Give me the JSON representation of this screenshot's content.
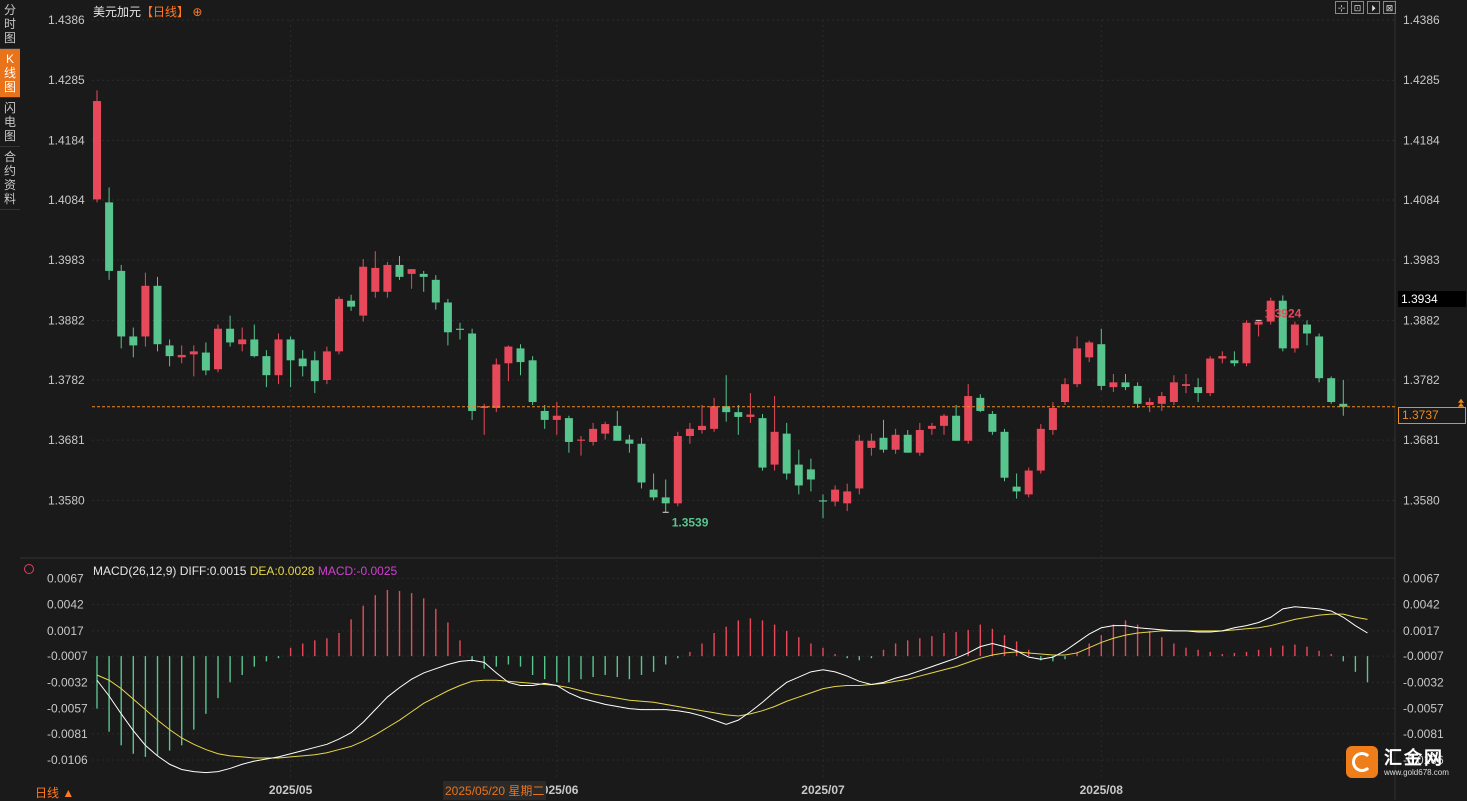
{
  "sidebar": {
    "tabs": [
      {
        "label": "分时图",
        "active": false
      },
      {
        "label": "K线图",
        "active": true
      },
      {
        "label": "闪电图",
        "active": false
      },
      {
        "label": "合约资料",
        "active": false
      }
    ]
  },
  "header": {
    "instrument": "美元加元",
    "period": "【日线】",
    "period_icon": "⊕"
  },
  "toolbar": {
    "buttons": [
      "⊹",
      "⊡",
      "⏵",
      "⊠"
    ]
  },
  "price_tags": {
    "last_close": "1.3934",
    "current": "1.3737",
    "high_label": "1.3924",
    "low_label": "1.3539"
  },
  "macd_header": {
    "params": "MACD(26,12,9)",
    "diff": "DIFF:0.0015",
    "dea": "DEA:0.0028",
    "macd": "MACD:-0.0025"
  },
  "bottom": {
    "period_label": "日线 ▲",
    "hover_date": "2025/05/20 星期二"
  },
  "logo": {
    "name": "汇金网",
    "url_text": "www.gold678.com"
  },
  "colors": {
    "up": "#e8495a",
    "down": "#58c48e",
    "diff_line": "#ffffff",
    "dea_line": "#e6d64a",
    "bg": "#1a1a1a"
  },
  "chart_data": {
    "type": "candlestick",
    "title": "美元加元【日线】",
    "price_axis": {
      "ticks": [
        "1.4386",
        "1.4285",
        "1.4184",
        "1.4084",
        "1.3983",
        "1.3882",
        "1.3782",
        "1.3681",
        "1.3580"
      ],
      "range": [
        1.349,
        1.4386
      ]
    },
    "macd_axis": {
      "ticks": [
        "0.0067",
        "0.0042",
        "0.0017",
        "-0.0007",
        "-0.0032",
        "-0.0057",
        "-0.0081",
        "-0.0106"
      ],
      "range": [
        -0.0125,
        0.0075
      ]
    },
    "x_labels": [
      "2025/05",
      "2025/06",
      "2025/07",
      "2025/08"
    ],
    "x_label_index": [
      16,
      38,
      60,
      83
    ],
    "current_price_line": 1.3737,
    "candles": [
      {
        "o": 1.4085,
        "h": 1.4268,
        "l": 1.408,
        "c": 1.425
      },
      {
        "o": 1.408,
        "h": 1.4105,
        "l": 1.395,
        "c": 1.3965
      },
      {
        "o": 1.3965,
        "h": 1.3975,
        "l": 1.3835,
        "c": 1.3855
      },
      {
        "o": 1.3855,
        "h": 1.387,
        "l": 1.382,
        "c": 1.384
      },
      {
        "o": 1.3855,
        "h": 1.3962,
        "l": 1.3838,
        "c": 1.394
      },
      {
        "o": 1.394,
        "h": 1.3955,
        "l": 1.383,
        "c": 1.3842
      },
      {
        "o": 1.384,
        "h": 1.385,
        "l": 1.3805,
        "c": 1.3822
      },
      {
        "o": 1.382,
        "h": 1.384,
        "l": 1.381,
        "c": 1.3824
      },
      {
        "o": 1.3825,
        "h": 1.384,
        "l": 1.3788,
        "c": 1.383
      },
      {
        "o": 1.3828,
        "h": 1.3845,
        "l": 1.379,
        "c": 1.3798
      },
      {
        "o": 1.38,
        "h": 1.3875,
        "l": 1.3795,
        "c": 1.3868
      },
      {
        "o": 1.3868,
        "h": 1.389,
        "l": 1.3838,
        "c": 1.3845
      },
      {
        "o": 1.3842,
        "h": 1.387,
        "l": 1.383,
        "c": 1.385
      },
      {
        "o": 1.385,
        "h": 1.3875,
        "l": 1.382,
        "c": 1.3822
      },
      {
        "o": 1.3822,
        "h": 1.3832,
        "l": 1.377,
        "c": 1.379
      },
      {
        "o": 1.379,
        "h": 1.386,
        "l": 1.3775,
        "c": 1.385
      },
      {
        "o": 1.385,
        "h": 1.3855,
        "l": 1.377,
        "c": 1.3815
      },
      {
        "o": 1.3818,
        "h": 1.3832,
        "l": 1.3788,
        "c": 1.3805
      },
      {
        "o": 1.3815,
        "h": 1.383,
        "l": 1.376,
        "c": 1.378
      },
      {
        "o": 1.3782,
        "h": 1.3838,
        "l": 1.3775,
        "c": 1.383
      },
      {
        "o": 1.383,
        "h": 1.3922,
        "l": 1.3825,
        "c": 1.3918
      },
      {
        "o": 1.3915,
        "h": 1.3925,
        "l": 1.3898,
        "c": 1.3905
      },
      {
        "o": 1.389,
        "h": 1.3985,
        "l": 1.388,
        "c": 1.3972
      },
      {
        "o": 1.393,
        "h": 1.3998,
        "l": 1.392,
        "c": 1.397
      },
      {
        "o": 1.393,
        "h": 1.398,
        "l": 1.392,
        "c": 1.3975
      },
      {
        "o": 1.3975,
        "h": 1.399,
        "l": 1.395,
        "c": 1.3955
      },
      {
        "o": 1.396,
        "h": 1.3968,
        "l": 1.3935,
        "c": 1.3968
      },
      {
        "o": 1.396,
        "h": 1.3965,
        "l": 1.393,
        "c": 1.3955
      },
      {
        "o": 1.395,
        "h": 1.3958,
        "l": 1.39,
        "c": 1.3912
      },
      {
        "o": 1.3912,
        "h": 1.3918,
        "l": 1.384,
        "c": 1.3862
      },
      {
        "o": 1.3868,
        "h": 1.3878,
        "l": 1.385,
        "c": 1.3866
      },
      {
        "o": 1.386,
        "h": 1.3868,
        "l": 1.3715,
        "c": 1.373
      },
      {
        "o": 1.3735,
        "h": 1.3742,
        "l": 1.369,
        "c": 1.3738
      },
      {
        "o": 1.3735,
        "h": 1.3818,
        "l": 1.3728,
        "c": 1.3808
      },
      {
        "o": 1.381,
        "h": 1.384,
        "l": 1.378,
        "c": 1.3838
      },
      {
        "o": 1.3835,
        "h": 1.3842,
        "l": 1.379,
        "c": 1.3812
      },
      {
        "o": 1.3815,
        "h": 1.3822,
        "l": 1.374,
        "c": 1.3745
      },
      {
        "o": 1.373,
        "h": 1.374,
        "l": 1.37,
        "c": 1.3715
      },
      {
        "o": 1.3715,
        "h": 1.3745,
        "l": 1.369,
        "c": 1.3722
      },
      {
        "o": 1.3718,
        "h": 1.3722,
        "l": 1.366,
        "c": 1.3678
      },
      {
        "o": 1.368,
        "h": 1.3688,
        "l": 1.3655,
        "c": 1.3682
      },
      {
        "o": 1.3678,
        "h": 1.371,
        "l": 1.3672,
        "c": 1.37
      },
      {
        "o": 1.3692,
        "h": 1.3712,
        "l": 1.3682,
        "c": 1.3708
      },
      {
        "o": 1.3705,
        "h": 1.373,
        "l": 1.368,
        "c": 1.368
      },
      {
        "o": 1.3682,
        "h": 1.369,
        "l": 1.366,
        "c": 1.3675
      },
      {
        "o": 1.3675,
        "h": 1.3685,
        "l": 1.36,
        "c": 1.361
      },
      {
        "o": 1.3598,
        "h": 1.3625,
        "l": 1.358,
        "c": 1.3585
      },
      {
        "o": 1.3585,
        "h": 1.3615,
        "l": 1.356,
        "c": 1.3575
      },
      {
        "o": 1.3575,
        "h": 1.3695,
        "l": 1.357,
        "c": 1.3688
      },
      {
        "o": 1.3688,
        "h": 1.371,
        "l": 1.3675,
        "c": 1.37
      },
      {
        "o": 1.3698,
        "h": 1.374,
        "l": 1.3692,
        "c": 1.3705
      },
      {
        "o": 1.37,
        "h": 1.3752,
        "l": 1.3695,
        "c": 1.3738
      },
      {
        "o": 1.3738,
        "h": 1.379,
        "l": 1.3712,
        "c": 1.3728
      },
      {
        "o": 1.3728,
        "h": 1.374,
        "l": 1.369,
        "c": 1.372
      },
      {
        "o": 1.372,
        "h": 1.376,
        "l": 1.371,
        "c": 1.3724
      },
      {
        "o": 1.3718,
        "h": 1.3725,
        "l": 1.363,
        "c": 1.3635
      },
      {
        "o": 1.364,
        "h": 1.3755,
        "l": 1.363,
        "c": 1.3695
      },
      {
        "o": 1.3692,
        "h": 1.371,
        "l": 1.3615,
        "c": 1.3625
      },
      {
        "o": 1.364,
        "h": 1.3665,
        "l": 1.359,
        "c": 1.3605
      },
      {
        "o": 1.3632,
        "h": 1.365,
        "l": 1.3595,
        "c": 1.3615
      },
      {
        "o": 1.358,
        "h": 1.359,
        "l": 1.355,
        "c": 1.3578
      },
      {
        "o": 1.3578,
        "h": 1.3605,
        "l": 1.357,
        "c": 1.3598
      },
      {
        "o": 1.3575,
        "h": 1.3608,
        "l": 1.3562,
        "c": 1.3595
      },
      {
        "o": 1.36,
        "h": 1.369,
        "l": 1.359,
        "c": 1.368
      },
      {
        "o": 1.3668,
        "h": 1.3692,
        "l": 1.3655,
        "c": 1.368
      },
      {
        "o": 1.3685,
        "h": 1.3715,
        "l": 1.366,
        "c": 1.3665
      },
      {
        "o": 1.3665,
        "h": 1.37,
        "l": 1.3658,
        "c": 1.369
      },
      {
        "o": 1.369,
        "h": 1.3698,
        "l": 1.366,
        "c": 1.366
      },
      {
        "o": 1.366,
        "h": 1.371,
        "l": 1.3655,
        "c": 1.3698
      },
      {
        "o": 1.37,
        "h": 1.371,
        "l": 1.369,
        "c": 1.3705
      },
      {
        "o": 1.3705,
        "h": 1.3725,
        "l": 1.369,
        "c": 1.3722
      },
      {
        "o": 1.3722,
        "h": 1.374,
        "l": 1.368,
        "c": 1.368
      },
      {
        "o": 1.368,
        "h": 1.3775,
        "l": 1.3675,
        "c": 1.3755
      },
      {
        "o": 1.3752,
        "h": 1.3758,
        "l": 1.3728,
        "c": 1.373
      },
      {
        "o": 1.3725,
        "h": 1.373,
        "l": 1.369,
        "c": 1.3695
      },
      {
        "o": 1.3695,
        "h": 1.37,
        "l": 1.3612,
        "c": 1.3618
      },
      {
        "o": 1.3603,
        "h": 1.3625,
        "l": 1.3583,
        "c": 1.3595
      },
      {
        "o": 1.359,
        "h": 1.3635,
        "l": 1.3585,
        "c": 1.363
      },
      {
        "o": 1.363,
        "h": 1.3708,
        "l": 1.3625,
        "c": 1.37
      },
      {
        "o": 1.3698,
        "h": 1.3745,
        "l": 1.369,
        "c": 1.3735
      },
      {
        "o": 1.3745,
        "h": 1.3785,
        "l": 1.374,
        "c": 1.3775
      },
      {
        "o": 1.3775,
        "h": 1.3855,
        "l": 1.377,
        "c": 1.3835
      },
      {
        "o": 1.382,
        "h": 1.3848,
        "l": 1.3812,
        "c": 1.3845
      },
      {
        "o": 1.3842,
        "h": 1.3868,
        "l": 1.3765,
        "c": 1.3772
      },
      {
        "o": 1.377,
        "h": 1.3792,
        "l": 1.3762,
        "c": 1.3778
      },
      {
        "o": 1.3778,
        "h": 1.3792,
        "l": 1.3765,
        "c": 1.377
      },
      {
        "o": 1.3772,
        "h": 1.3778,
        "l": 1.3735,
        "c": 1.3742
      },
      {
        "o": 1.374,
        "h": 1.3752,
        "l": 1.3728,
        "c": 1.3745
      },
      {
        "o": 1.3742,
        "h": 1.3762,
        "l": 1.373,
        "c": 1.3755
      },
      {
        "o": 1.3745,
        "h": 1.379,
        "l": 1.374,
        "c": 1.3778
      },
      {
        "o": 1.3772,
        "h": 1.3792,
        "l": 1.376,
        "c": 1.3775
      },
      {
        "o": 1.377,
        "h": 1.3785,
        "l": 1.3745,
        "c": 1.376
      },
      {
        "o": 1.376,
        "h": 1.3822,
        "l": 1.3755,
        "c": 1.3818
      },
      {
        "o": 1.3818,
        "h": 1.383,
        "l": 1.381,
        "c": 1.3822
      },
      {
        "o": 1.3815,
        "h": 1.383,
        "l": 1.3805,
        "c": 1.381
      },
      {
        "o": 1.381,
        "h": 1.3882,
        "l": 1.3805,
        "c": 1.3878
      },
      {
        "o": 1.3875,
        "h": 1.3882,
        "l": 1.3855,
        "c": 1.388
      },
      {
        "o": 1.388,
        "h": 1.392,
        "l": 1.3875,
        "c": 1.3915
      },
      {
        "o": 1.3915,
        "h": 1.3924,
        "l": 1.383,
        "c": 1.3835
      },
      {
        "o": 1.3835,
        "h": 1.388,
        "l": 1.3828,
        "c": 1.3875
      },
      {
        "o": 1.3875,
        "h": 1.3882,
        "l": 1.384,
        "c": 1.386
      },
      {
        "o": 1.3855,
        "h": 1.386,
        "l": 1.3778,
        "c": 1.3785
      },
      {
        "o": 1.3785,
        "h": 1.3788,
        "l": 1.3742,
        "c": 1.3745
      },
      {
        "o": 1.3742,
        "h": 1.3782,
        "l": 1.3722,
        "c": 1.3737
      }
    ],
    "macd_hist": [
      -0.005,
      -0.0072,
      -0.0085,
      -0.0093,
      -0.0096,
      -0.0095,
      -0.009,
      -0.0085,
      -0.007,
      -0.0055,
      -0.004,
      -0.0025,
      -0.0018,
      -0.001,
      -0.0005,
      -0.0002,
      0.0008,
      0.0012,
      0.0015,
      0.0017,
      0.0022,
      0.0035,
      0.0048,
      0.0058,
      0.0063,
      0.0062,
      0.006,
      0.0055,
      0.0045,
      0.0032,
      0.0015,
      -0.0005,
      -0.0012,
      -0.001,
      -0.0008,
      -0.001,
      -0.0018,
      -0.0022,
      -0.0025,
      -0.0025,
      -0.0022,
      -0.002,
      -0.0018,
      -0.002,
      -0.0022,
      -0.0018,
      -0.0015,
      -0.0008,
      -0.0002,
      0.0004,
      0.0012,
      0.0022,
      0.0028,
      0.0034,
      0.0036,
      0.0034,
      0.003,
      0.0024,
      0.0018,
      0.0012,
      0.0008,
      0.0002,
      -0.0002,
      -0.0004,
      -0.0002,
      0.0006,
      0.0012,
      0.0015,
      0.0017,
      0.0019,
      0.0022,
      0.0023,
      0.0025,
      0.003,
      0.0026,
      0.002,
      0.0014,
      0.0006,
      -0.0004,
      -0.0005,
      -0.0003,
      0.0004,
      0.0012,
      0.002,
      0.003,
      0.0034,
      0.003,
      0.0024,
      0.0018,
      0.0012,
      0.0008,
      0.0006,
      0.0004,
      0.0002,
      0.0003,
      0.0004,
      0.0006,
      0.0008,
      0.001,
      0.0011,
      0.0009,
      0.0005,
      0.0002,
      -0.0005,
      -0.0015,
      -0.0025
    ],
    "diff": [
      -0.003,
      -0.0045,
      -0.0062,
      -0.0078,
      -0.0092,
      -0.0102,
      -0.011,
      -0.0115,
      -0.0117,
      -0.0118,
      -0.0117,
      -0.0114,
      -0.011,
      -0.0107,
      -0.0105,
      -0.0103,
      -0.01,
      -0.0097,
      -0.0094,
      -0.0091,
      -0.0086,
      -0.008,
      -0.007,
      -0.0058,
      -0.0046,
      -0.0037,
      -0.0029,
      -0.0023,
      -0.0019,
      -0.0015,
      -0.0012,
      -0.0011,
      -0.0013,
      -0.0023,
      -0.0032,
      -0.0035,
      -0.0035,
      -0.0033,
      -0.0035,
      -0.0042,
      -0.0047,
      -0.005,
      -0.0053,
      -0.0055,
      -0.0057,
      -0.0058,
      -0.0058,
      -0.0058,
      -0.0059,
      -0.0061,
      -0.0064,
      -0.0068,
      -0.0072,
      -0.0068,
      -0.006,
      -0.0051,
      -0.0041,
      -0.0032,
      -0.0027,
      -0.0022,
      -0.002,
      -0.0022,
      -0.0026,
      -0.0031,
      -0.0034,
      -0.0032,
      -0.0028,
      -0.0025,
      -0.0021,
      -0.0017,
      -0.0013,
      -0.0009,
      -0.0004,
      0.0002,
      0.0005,
      0.0002,
      -0.0002,
      -0.0008,
      -0.001,
      -0.0008,
      -0.0002,
      0.0006,
      0.0014,
      0.002,
      0.0022,
      0.0022,
      0.002,
      0.0019,
      0.0018,
      0.0017,
      0.0017,
      0.0016,
      0.0016,
      0.0017,
      0.002,
      0.0022,
      0.0025,
      0.003,
      0.0038,
      0.004,
      0.0039,
      0.0038,
      0.0036,
      0.003,
      0.0022,
      0.0015
    ],
    "dea": [
      -0.0025,
      -0.003,
      -0.0038,
      -0.0048,
      -0.0058,
      -0.0068,
      -0.0077,
      -0.0085,
      -0.0091,
      -0.0096,
      -0.01,
      -0.0102,
      -0.0103,
      -0.0104,
      -0.0104,
      -0.0104,
      -0.0103,
      -0.0102,
      -0.0101,
      -0.0099,
      -0.0096,
      -0.0093,
      -0.0088,
      -0.0082,
      -0.0075,
      -0.0068,
      -0.006,
      -0.0052,
      -0.0046,
      -0.004,
      -0.0035,
      -0.0031,
      -0.003,
      -0.003,
      -0.0031,
      -0.0032,
      -0.0033,
      -0.0034,
      -0.0035,
      -0.0037,
      -0.004,
      -0.0043,
      -0.0045,
      -0.0047,
      -0.0049,
      -0.005,
      -0.0051,
      -0.0053,
      -0.0055,
      -0.0057,
      -0.0059,
      -0.0061,
      -0.0063,
      -0.0064,
      -0.0062,
      -0.0059,
      -0.0055,
      -0.005,
      -0.0046,
      -0.0042,
      -0.0038,
      -0.0036,
      -0.0035,
      -0.0035,
      -0.0034,
      -0.0033,
      -0.0031,
      -0.0029,
      -0.0026,
      -0.0023,
      -0.002,
      -0.0017,
      -0.0013,
      -0.0009,
      -0.0006,
      -0.0004,
      -0.0003,
      -0.0004,
      -0.0005,
      -0.0006,
      -0.0006,
      -0.0004,
      0.0001,
      0.0006,
      0.001,
      0.0013,
      0.0015,
      0.0016,
      0.0017,
      0.0017,
      0.0017,
      0.0017,
      0.0017,
      0.0017,
      0.0018,
      0.0019,
      0.002,
      0.0022,
      0.0025,
      0.0028,
      0.003,
      0.0032,
      0.0033,
      0.0033,
      0.003,
      0.0028
    ]
  }
}
